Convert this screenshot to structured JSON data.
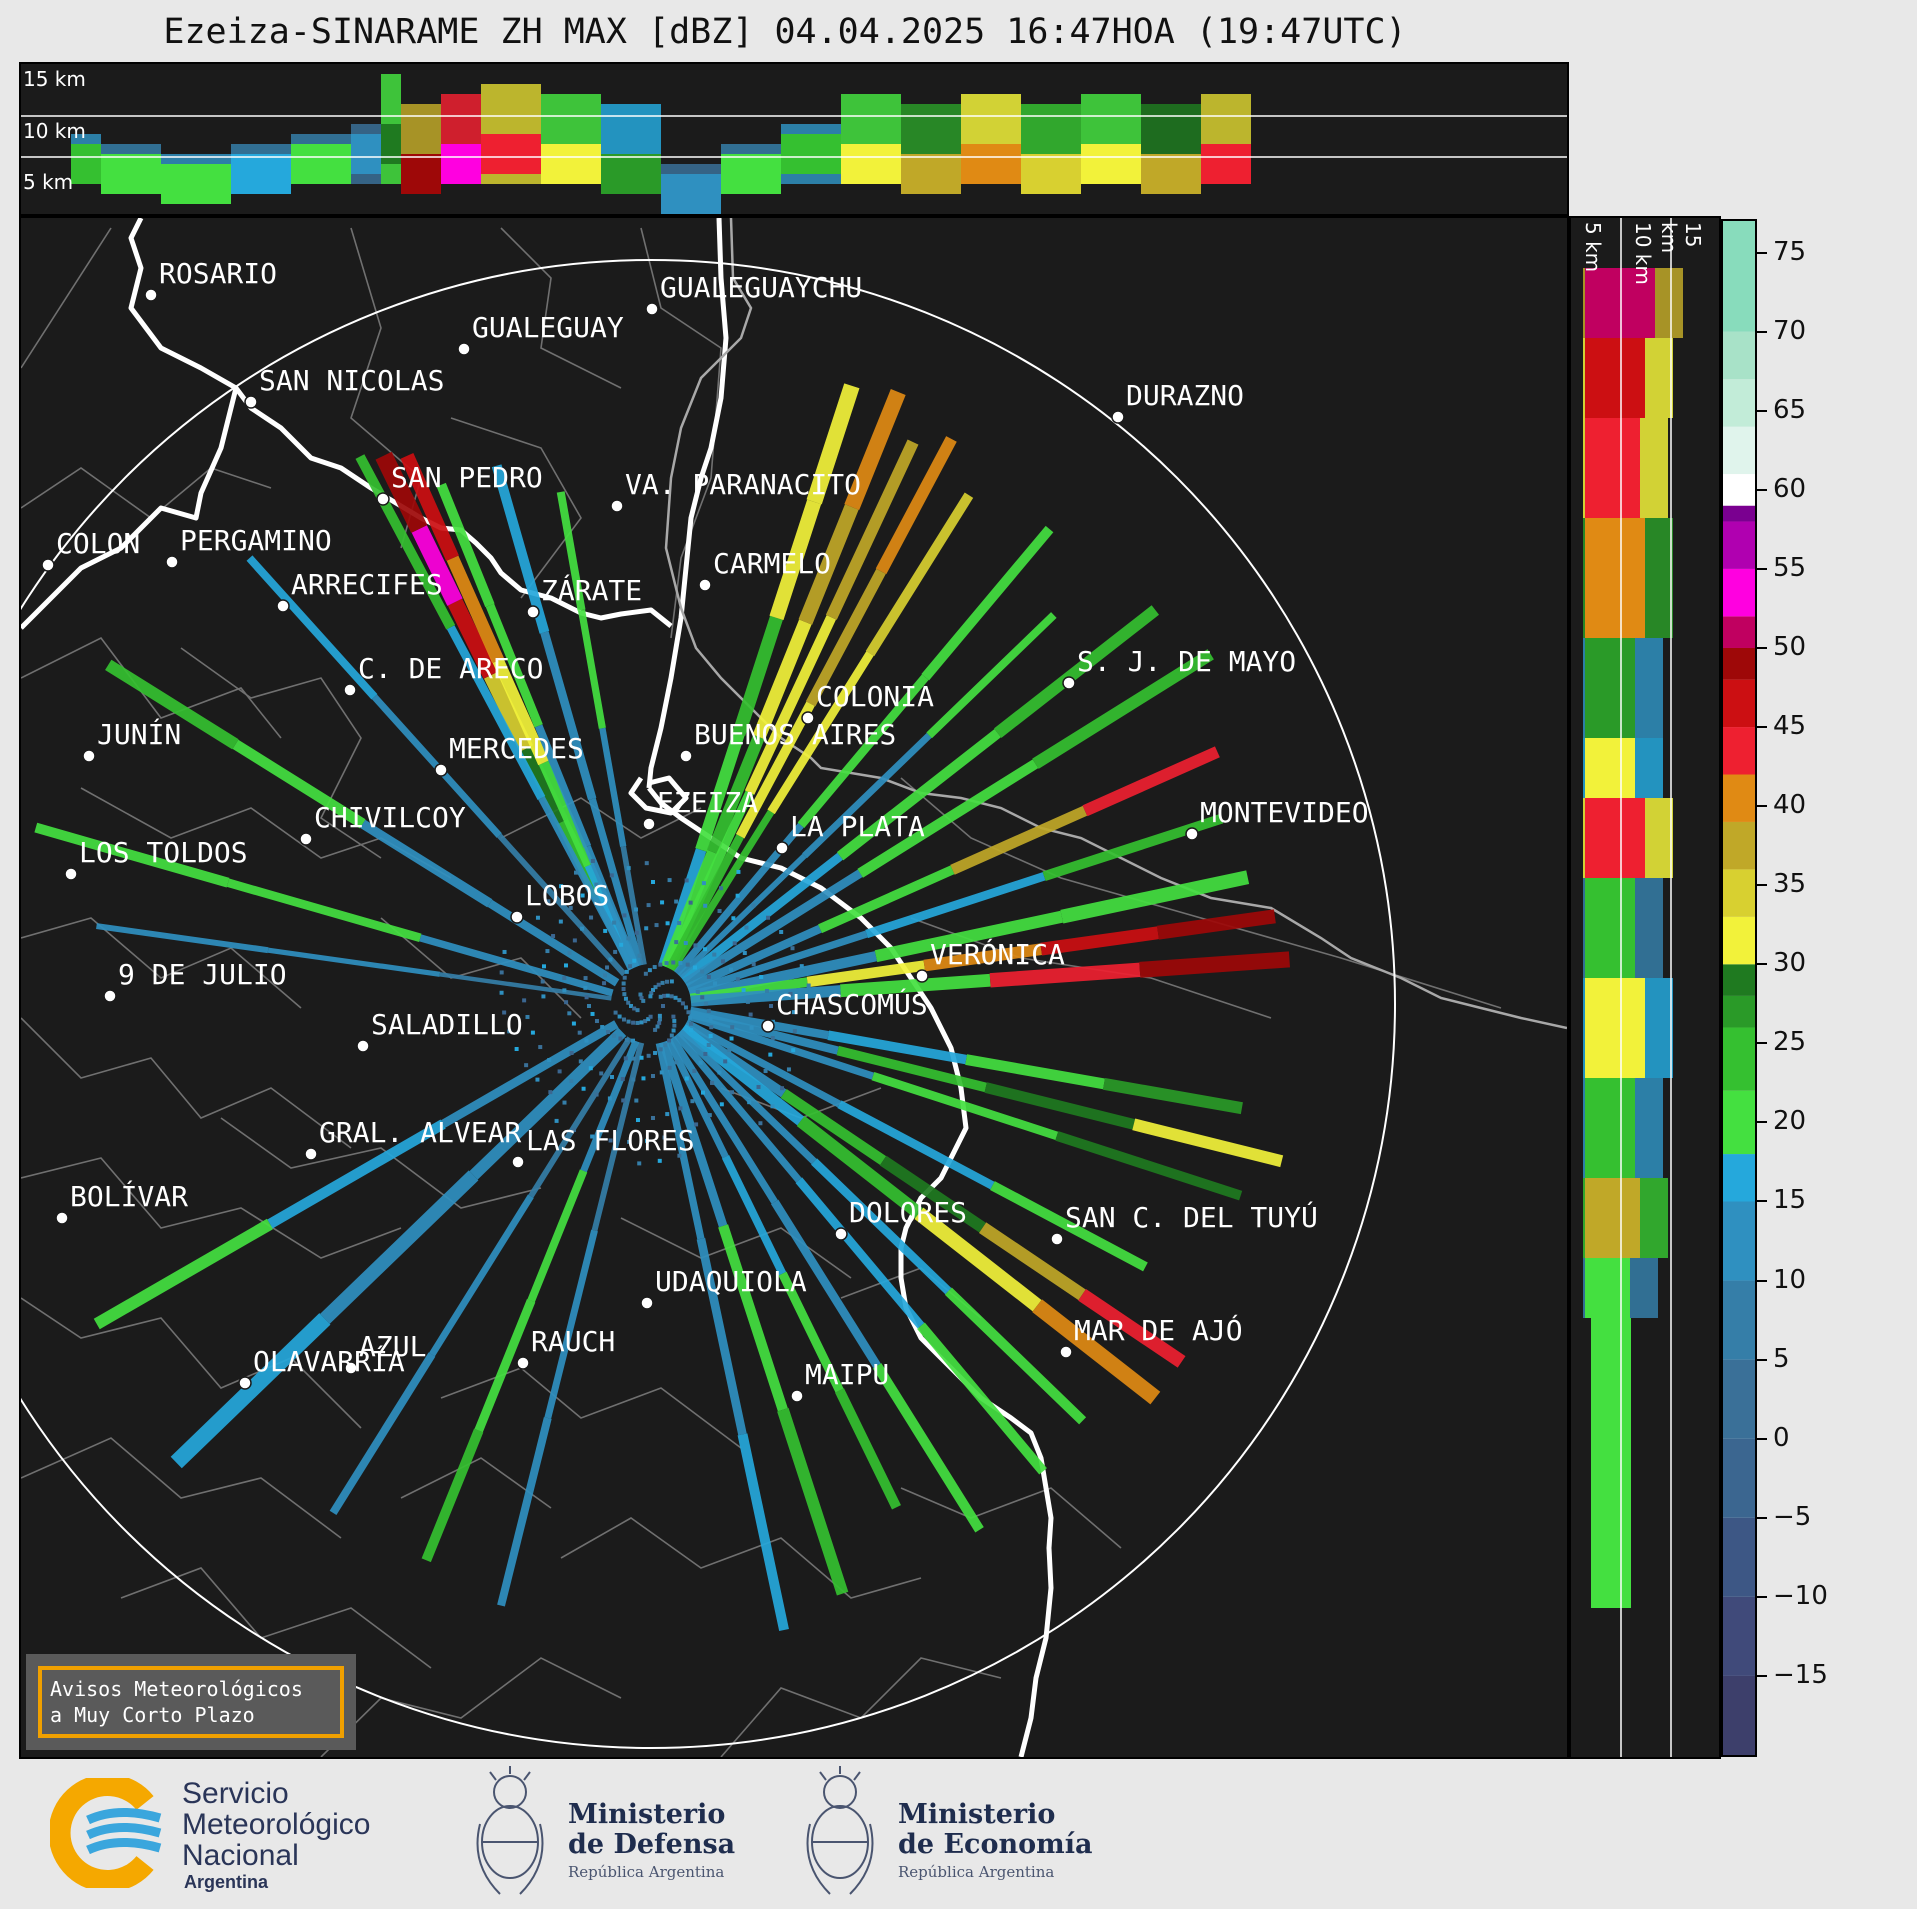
{
  "title": "Ezeiza-SINARAME ZH MAX [dBZ] 04.04.2025 16:47HOA (19:47UTC)",
  "top_panel": {
    "height_labels": [
      "15 km",
      "10 km",
      "5 km"
    ]
  },
  "side_panel": {
    "height_labels": [
      "5 km",
      "10 km",
      "15 km"
    ]
  },
  "colorbar": {
    "unit": "dBZ",
    "range": [
      -20,
      77
    ],
    "ticks": [
      "75",
      "70",
      "65",
      "60",
      "55",
      "50",
      "45",
      "40",
      "35",
      "30",
      "25",
      "20",
      "15",
      "10",
      "5",
      "0",
      "−5",
      "−10",
      "−15"
    ],
    "bands": [
      {
        "from": -20,
        "to": -15,
        "color": "#3d3f6b"
      },
      {
        "from": -15,
        "to": -10,
        "color": "#404a7a"
      },
      {
        "from": -10,
        "to": -5,
        "color": "#3d5785"
      },
      {
        "from": -5,
        "to": 0,
        "color": "#3b6690"
      },
      {
        "from": 0,
        "to": 5,
        "color": "#3a7098"
      },
      {
        "from": 5,
        "to": 10,
        "color": "#357ea8"
      },
      {
        "from": 10,
        "to": 15,
        "color": "#2f90c0"
      },
      {
        "from": 15,
        "to": 18,
        "color": "#25a8dc"
      },
      {
        "from": 18,
        "to": 22,
        "color": "#44e040"
      },
      {
        "from": 22,
        "to": 26,
        "color": "#35c030"
      },
      {
        "from": 26,
        "to": 28,
        "color": "#2a9a28"
      },
      {
        "from": 28,
        "to": 30,
        "color": "#1f7a20"
      },
      {
        "from": 30,
        "to": 33,
        "color": "#f2f23a"
      },
      {
        "from": 33,
        "to": 36,
        "color": "#d8d030"
      },
      {
        "from": 36,
        "to": 39,
        "color": "#c0a828"
      },
      {
        "from": 39,
        "to": 42,
        "color": "#e08a14"
      },
      {
        "from": 42,
        "to": 45,
        "color": "#ee2030"
      },
      {
        "from": 45,
        "to": 48,
        "color": "#cc0f12"
      },
      {
        "from": 48,
        "to": 50,
        "color": "#9e0808"
      },
      {
        "from": 50,
        "to": 52,
        "color": "#c00060"
      },
      {
        "from": 52,
        "to": 55,
        "color": "#ff00e0"
      },
      {
        "from": 55,
        "to": 58,
        "color": "#b000b0"
      },
      {
        "from": 58,
        "to": 59,
        "color": "#7a0090"
      },
      {
        "from": 59,
        "to": 61,
        "color": "#ffffff"
      },
      {
        "from": 61,
        "to": 64,
        "color": "#e0f4ec"
      },
      {
        "from": 64,
        "to": 67,
        "color": "#c2ecd8"
      },
      {
        "from": 67,
        "to": 70,
        "color": "#a8e2c8"
      },
      {
        "from": 70,
        "to": 77,
        "color": "#88dcbc"
      }
    ]
  },
  "cities": [
    {
      "name": "ROSARIO"
    },
    {
      "name": "GUALEGUAYCHU"
    },
    {
      "name": "GUALEGUAY"
    },
    {
      "name": "SAN NICOLAS"
    },
    {
      "name": "DURAZNO"
    },
    {
      "name": "SAN PEDRO"
    },
    {
      "name": "VA. PARANACITO"
    },
    {
      "name": "COLON"
    },
    {
      "name": "PERGAMINO"
    },
    {
      "name": "CARMELO"
    },
    {
      "name": "ARRECIFES"
    },
    {
      "name": "ZÁRATE"
    },
    {
      "name": "S. J. DE MAYO"
    },
    {
      "name": "C. DE ARECO"
    },
    {
      "name": "COLONIA"
    },
    {
      "name": "JUNÍN"
    },
    {
      "name": "BUENOS AIRES"
    },
    {
      "name": "MERCEDES"
    },
    {
      "name": "EZEIZA"
    },
    {
      "name": "MONTEVIDEO"
    },
    {
      "name": "CHIVILCOY"
    },
    {
      "name": "LA PLATA"
    },
    {
      "name": "LOS TOLDOS"
    },
    {
      "name": "LOBOS"
    },
    {
      "name": "VERÓNICA"
    },
    {
      "name": "9 DE JULIO"
    },
    {
      "name": "CHASCOMÚS"
    },
    {
      "name": "SALADILLO"
    },
    {
      "name": "GRAL. ALVEAR"
    },
    {
      "name": "LAS FLORES"
    },
    {
      "name": "BOLÍVAR"
    },
    {
      "name": "DOLORES"
    },
    {
      "name": "SAN C. DEL TUYÚ"
    },
    {
      "name": "UDAQUIOLA"
    },
    {
      "name": "MAR DE AJÓ"
    },
    {
      "name": "AZUL"
    },
    {
      "name": "RAUCH"
    },
    {
      "name": "OLAVARRÍA"
    },
    {
      "name": "MAIPU"
    }
  ],
  "warning": {
    "line1": "Avisos Meteorológicos",
    "line2": "a Muy Corto Plazo"
  },
  "footer": {
    "smn": {
      "line1": "Servicio",
      "line2": "Meteorológico",
      "line3": "Nacional",
      "country": "Argentina"
    },
    "defensa": {
      "line1": "Ministerio",
      "line2": "de Defensa",
      "country": "República Argentina"
    },
    "economia": {
      "line1": "Ministerio",
      "line2": "de Economía",
      "country": "República Argentina"
    }
  },
  "icons": [
    "smn-logo-icon",
    "coat-of-arms-icon"
  ]
}
